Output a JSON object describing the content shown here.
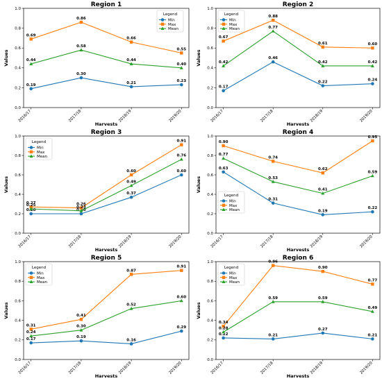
{
  "chart_data": [
    {
      "type": "line",
      "title": "Region 1",
      "xlabel": "Harvests",
      "ylabel": "Values",
      "categories": [
        "2016/17",
        "2017/18",
        "2018/19",
        "2019/20"
      ],
      "ylim": [
        0,
        1.0
      ],
      "yticks": [
        "0.0",
        "0.2",
        "0.4",
        "0.6",
        "0.8",
        "1.0"
      ],
      "legend": {
        "title": "Legend",
        "position": "top-right"
      },
      "series": [
        {
          "name": "Min",
          "color": "#1f77b4",
          "marker": "circle",
          "values": [
            0.19,
            0.3,
            0.21,
            0.23
          ],
          "labels": [
            "0.19",
            "0.30",
            "0.21",
            "0.23"
          ]
        },
        {
          "name": "Max",
          "color": "#ff7f0e",
          "marker": "square",
          "values": [
            0.69,
            0.86,
            0.66,
            0.55
          ],
          "labels": [
            "0.69",
            "0.86",
            "0.66",
            "0.55"
          ]
        },
        {
          "name": "Mean",
          "color": "#2ca02c",
          "marker": "triangle",
          "values": [
            0.44,
            0.58,
            0.44,
            0.4
          ],
          "labels": [
            "0.44",
            "0.58",
            "0.44",
            "0.40"
          ]
        }
      ]
    },
    {
      "type": "line",
      "title": "Region 2",
      "xlabel": "Harvests",
      "ylabel": "Values",
      "categories": [
        "2016/17",
        "2017/18",
        "2018/19",
        "2019/20"
      ],
      "ylim": [
        0,
        1.0
      ],
      "yticks": [
        "0.0",
        "0.2",
        "0.4",
        "0.6",
        "0.8",
        "1.0"
      ],
      "legend": {
        "title": "Legend",
        "position": "top-left"
      },
      "series": [
        {
          "name": "Min",
          "color": "#1f77b4",
          "marker": "circle",
          "values": [
            0.17,
            0.46,
            0.22,
            0.24
          ],
          "labels": [
            "0.17",
            "0.46",
            "0.22",
            "0.24"
          ]
        },
        {
          "name": "Max",
          "color": "#ff7f0e",
          "marker": "square",
          "values": [
            0.67,
            0.88,
            0.61,
            0.6
          ],
          "labels": [
            "0.67",
            "0.88",
            "0.61",
            "0.60"
          ]
        },
        {
          "name": "Mean",
          "color": "#2ca02c",
          "marker": "triangle",
          "values": [
            0.42,
            0.77,
            0.42,
            0.42
          ],
          "labels": [
            "0.42",
            "0.77",
            "0.42",
            "0.42"
          ]
        }
      ]
    },
    {
      "type": "line",
      "title": "Region 3",
      "xlabel": "Harvests",
      "ylabel": "Values",
      "categories": [
        "2016/17",
        "2017/18",
        "2018/19",
        "2019/20"
      ],
      "ylim": [
        0,
        1.0
      ],
      "yticks": [
        "0.0",
        "0.2",
        "0.4",
        "0.6",
        "0.8",
        "1.0"
      ],
      "legend": {
        "title": "Legend",
        "position": "top-left"
      },
      "series": [
        {
          "name": "Min",
          "color": "#1f77b4",
          "marker": "circle",
          "values": [
            0.2,
            0.2,
            0.37,
            0.6
          ],
          "labels": [
            "0.20",
            "0.20",
            "0.37",
            "0.60"
          ]
        },
        {
          "name": "Max",
          "color": "#ff7f0e",
          "marker": "square",
          "values": [
            0.27,
            0.26,
            0.6,
            0.91
          ],
          "labels": [
            "0.27",
            "0.26",
            "0.60",
            "0.91"
          ]
        },
        {
          "name": "Mean",
          "color": "#2ca02c",
          "marker": "triangle",
          "values": [
            0.25,
            0.23,
            0.49,
            0.76
          ],
          "labels": [
            "0.25",
            "0.23",
            "0.49",
            "0.76"
          ]
        }
      ]
    },
    {
      "type": "line",
      "title": "Region 4",
      "xlabel": "Harvests",
      "ylabel": "Values",
      "categories": [
        "2016/17",
        "2017/18",
        "2018/19",
        "2019/20"
      ],
      "ylim": [
        0,
        1.0
      ],
      "yticks": [
        "0.0",
        "0.2",
        "0.4",
        "0.6",
        "0.8",
        "1.0"
      ],
      "legend": {
        "title": "Legend",
        "position": "lower-left"
      },
      "series": [
        {
          "name": "Min",
          "color": "#1f77b4",
          "marker": "circle",
          "values": [
            0.63,
            0.31,
            0.19,
            0.22
          ],
          "labels": [
            "0.63",
            "0.31",
            "0.19",
            "0.22"
          ]
        },
        {
          "name": "Max",
          "color": "#ff7f0e",
          "marker": "square",
          "values": [
            0.9,
            0.74,
            0.62,
            0.95
          ],
          "labels": [
            "0.90",
            "0.74",
            "0.62",
            "0.95"
          ]
        },
        {
          "name": "Mean",
          "color": "#2ca02c",
          "marker": "triangle",
          "values": [
            0.77,
            0.53,
            0.41,
            0.59
          ],
          "labels": [
            "0.77",
            "0.53",
            "0.41",
            "0.59"
          ]
        }
      ]
    },
    {
      "type": "line",
      "title": "Region 5",
      "xlabel": "Harvests",
      "ylabel": "Values",
      "categories": [
        "2016/17",
        "2017/18",
        "2018/19",
        "2019/20"
      ],
      "ylim": [
        0,
        1.0
      ],
      "yticks": [
        "0.0",
        "0.2",
        "0.4",
        "0.6",
        "0.8",
        "1.0"
      ],
      "legend": {
        "title": "Legend",
        "position": "top-left"
      },
      "series": [
        {
          "name": "Min",
          "color": "#1f77b4",
          "marker": "circle",
          "values": [
            0.17,
            0.19,
            0.16,
            0.29
          ],
          "labels": [
            "0.17",
            "0.19",
            "0.16",
            "0.29"
          ]
        },
        {
          "name": "Max",
          "color": "#ff7f0e",
          "marker": "square",
          "values": [
            0.31,
            0.41,
            0.87,
            0.91
          ],
          "labels": [
            "0.31",
            "0.41",
            "0.87",
            "0.91"
          ]
        },
        {
          "name": "Mean",
          "color": "#2ca02c",
          "marker": "triangle",
          "values": [
            0.24,
            0.3,
            0.52,
            0.6
          ],
          "labels": [
            "0.24",
            "0.30",
            "0.52",
            "0.60"
          ]
        }
      ]
    },
    {
      "type": "line",
      "title": "Region 6",
      "xlabel": "Harvests",
      "ylabel": "Values",
      "categories": [
        "2016/17",
        "2017/18",
        "2018/19",
        "2019/20"
      ],
      "ylim": [
        0,
        1.0
      ],
      "yticks": [
        "0.0",
        "0.2",
        "0.4",
        "0.6",
        "0.8",
        "1.0"
      ],
      "legend": {
        "title": "Legend",
        "position": "top-left"
      },
      "series": [
        {
          "name": "Min",
          "color": "#1f77b4",
          "marker": "circle",
          "values": [
            0.22,
            0.21,
            0.27,
            0.21
          ],
          "labels": [
            "0.22",
            "0.21",
            "0.27",
            "0.21"
          ]
        },
        {
          "name": "Max",
          "color": "#ff7f0e",
          "marker": "square",
          "values": [
            0.34,
            0.96,
            0.9,
            0.77
          ],
          "labels": [
            "0.34",
            "0.96",
            "0.90",
            "0.77"
          ]
        },
        {
          "name": "Mean",
          "color": "#2ca02c",
          "marker": "triangle",
          "values": [
            0.28,
            0.59,
            0.59,
            0.49
          ],
          "labels": [
            "0.28",
            "0.59",
            "0.59",
            "0.49"
          ]
        }
      ]
    }
  ]
}
